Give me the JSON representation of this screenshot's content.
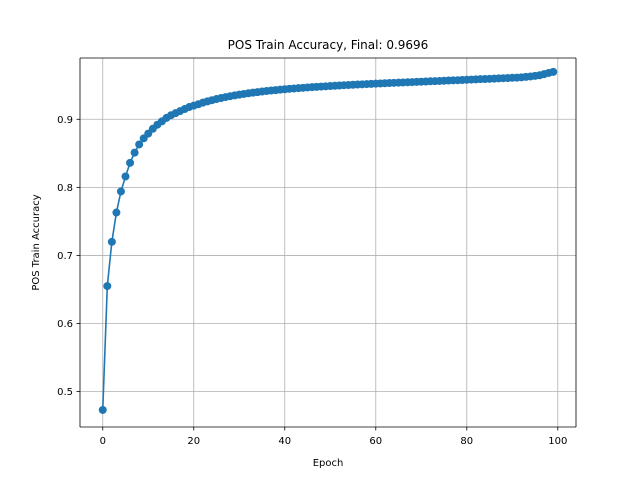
{
  "chart_data": {
    "type": "line",
    "title": "POS Train Accuracy, Final: 0.9696",
    "xlabel": "Epoch",
    "ylabel": "POS Train Accuracy",
    "xlim": [
      -5,
      104
    ],
    "ylim": [
      0.448,
      0.99
    ],
    "xticks": [
      0,
      20,
      40,
      60,
      80,
      100
    ],
    "yticks": [
      0.5,
      0.6,
      0.7,
      0.8,
      0.9
    ],
    "xtick_labels": [
      "0",
      "20",
      "40",
      "60",
      "80",
      "100"
    ],
    "ytick_labels": [
      "0.5",
      "0.6",
      "0.7",
      "0.8",
      "0.9"
    ],
    "grid": true,
    "marker": "circle",
    "color": "#1f77b4",
    "series": [
      {
        "x": [
          0,
          1,
          2,
          3,
          4,
          5,
          6,
          7,
          8,
          9,
          10,
          11,
          12,
          13,
          14,
          15,
          16,
          17,
          18,
          19,
          20,
          21,
          22,
          23,
          24,
          25,
          26,
          27,
          28,
          29,
          30,
          31,
          32,
          33,
          34,
          35,
          36,
          37,
          38,
          39,
          40,
          41,
          42,
          43,
          44,
          45,
          46,
          47,
          48,
          49,
          50,
          51,
          52,
          53,
          54,
          55,
          56,
          57,
          58,
          59,
          60,
          61,
          62,
          63,
          64,
          65,
          66,
          67,
          68,
          69,
          70,
          71,
          72,
          73,
          74,
          75,
          76,
          77,
          78,
          79,
          80,
          81,
          82,
          83,
          84,
          85,
          86,
          87,
          88,
          89,
          90,
          91,
          92,
          93,
          94,
          95,
          96,
          97,
          98,
          99
        ],
        "values": [
          0.473,
          0.655,
          0.72,
          0.763,
          0.794,
          0.816,
          0.836,
          0.851,
          0.863,
          0.872,
          0.879,
          0.886,
          0.892,
          0.897,
          0.902,
          0.906,
          0.909,
          0.912,
          0.915,
          0.918,
          0.92,
          0.922,
          0.9244,
          0.9263,
          0.928,
          0.9297,
          0.9312,
          0.9326,
          0.9339,
          0.9351,
          0.9362,
          0.9372,
          0.9382,
          0.9391,
          0.9399,
          0.9407,
          0.9415,
          0.9422,
          0.9428,
          0.9435,
          0.9441,
          0.9447,
          0.9452,
          0.9457,
          0.9462,
          0.9467,
          0.9472,
          0.9476,
          0.948,
          0.9484,
          0.9488,
          0.9492,
          0.9496,
          0.95,
          0.9503,
          0.9507,
          0.951,
          0.9513,
          0.9517,
          0.952,
          0.9523,
          0.9526,
          0.9529,
          0.9532,
          0.9535,
          0.9538,
          0.9541,
          0.9543,
          0.9546,
          0.9549,
          0.9552,
          0.9555,
          0.9558,
          0.956,
          0.9563,
          0.9566,
          0.9569,
          0.9572,
          0.9574,
          0.9577,
          0.958,
          0.9583,
          0.9586,
          0.9589,
          0.9591,
          0.9594,
          0.9597,
          0.96,
          0.9603,
          0.9606,
          0.9609,
          0.9612,
          0.9616,
          0.9622,
          0.9629,
          0.9637,
          0.9646,
          0.9663,
          0.968,
          0.9696
        ]
      }
    ]
  }
}
